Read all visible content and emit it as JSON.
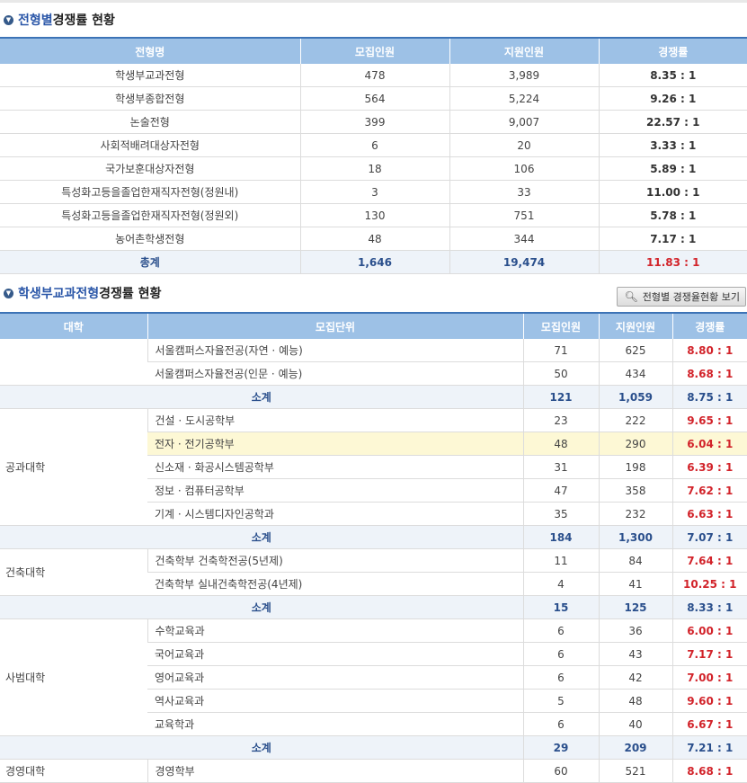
{
  "section1": {
    "title_highlight": "전형별",
    "title_rest": " 경쟁률 현황",
    "headers": [
      "전형명",
      "모집인원",
      "지원인원",
      "경쟁률"
    ],
    "rows": [
      [
        "학생부교과전형",
        "478",
        "3,989",
        "8.35 : 1"
      ],
      [
        "학생부종합전형",
        "564",
        "5,224",
        "9.26 : 1"
      ],
      [
        "논술전형",
        "399",
        "9,007",
        "22.57 : 1"
      ],
      [
        "사회적배려대상자전형",
        "6",
        "20",
        "3.33 : 1"
      ],
      [
        "국가보훈대상자전형",
        "18",
        "106",
        "5.89 : 1"
      ],
      [
        "특성화고등을졸업한재직자전형(정원내)",
        "3",
        "33",
        "11.00 : 1"
      ],
      [
        "특성화고등을졸업한재직자전형(정원외)",
        "130",
        "751",
        "5.78 : 1"
      ],
      [
        "농어촌학생전형",
        "48",
        "344",
        "7.17 : 1"
      ]
    ],
    "total": [
      "총계",
      "1,646",
      "19,474",
      "11.83 : 1"
    ]
  },
  "section2": {
    "title_highlight": "학생부교과전형",
    "title_rest": " 경쟁률 현황",
    "button_label": "전형별 경쟁율현황 보기",
    "headers": [
      "대학",
      "모집단위",
      "모집인원",
      "지원인원",
      "경쟁률"
    ],
    "subtotal_label": "소계",
    "groups": [
      {
        "college": "",
        "rows": [
          [
            "서울캠퍼스자율전공(자연 · 예능)",
            "71",
            "625",
            "8.80 : 1"
          ],
          [
            "서울캠퍼스자율전공(인문 · 예능)",
            "50",
            "434",
            "8.68 : 1"
          ]
        ],
        "subtotal": [
          "121",
          "1,059",
          "8.75 : 1"
        ]
      },
      {
        "college": "공과대학",
        "rows": [
          [
            "건설 · 도시공학부",
            "23",
            "222",
            "9.65 : 1"
          ],
          [
            "전자 · 전기공학부",
            "48",
            "290",
            "6.04 : 1"
          ],
          [
            "신소재 · 화공시스템공학부",
            "31",
            "198",
            "6.39 : 1"
          ],
          [
            "정보 · 컴퓨터공학부",
            "47",
            "358",
            "7.62 : 1"
          ],
          [
            "기계 · 시스템디자인공학과",
            "35",
            "232",
            "6.63 : 1"
          ]
        ],
        "subtotal": [
          "184",
          "1,300",
          "7.07 : 1"
        ]
      },
      {
        "college": "건축대학",
        "rows": [
          [
            "건축학부 건축학전공(5년제)",
            "11",
            "84",
            "7.64 : 1"
          ],
          [
            "건축학부 실내건축학전공(4년제)",
            "4",
            "41",
            "10.25 : 1"
          ]
        ],
        "subtotal": [
          "15",
          "125",
          "8.33 : 1"
        ]
      },
      {
        "college": "사범대학",
        "rows": [
          [
            "수학교육과",
            "6",
            "36",
            "6.00 : 1"
          ],
          [
            "국어교육과",
            "6",
            "43",
            "7.17 : 1"
          ],
          [
            "영어교육과",
            "6",
            "42",
            "7.00 : 1"
          ],
          [
            "역사교육과",
            "5",
            "48",
            "9.60 : 1"
          ],
          [
            "교육학과",
            "6",
            "40",
            "6.67 : 1"
          ]
        ],
        "subtotal": [
          "29",
          "209",
          "7.21 : 1"
        ]
      },
      {
        "college": "경영대학",
        "rows": [
          [
            "경영학부",
            "60",
            "521",
            "8.68 : 1"
          ]
        ],
        "subtotal": null
      }
    ]
  }
}
